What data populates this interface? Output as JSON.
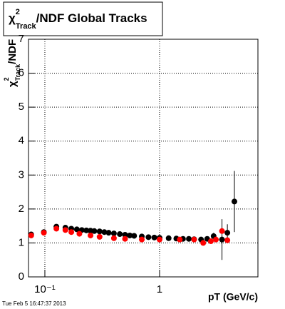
{
  "chart_data": {
    "type": "scatter",
    "title": {
      "symbol": "χ",
      "sup": "2",
      "sub": "Track",
      "rest": "/NDF  Global Tracks"
    },
    "y_label": {
      "symbol": "χ",
      "sup": "2",
      "sub": "Track",
      "rest": "/NDF"
    },
    "x_label": "pT (GeV/c)",
    "timestamp": "Tue Feb  5 16:47:37 2013",
    "xlim": [
      0.072,
      7.2
    ],
    "log_x": true,
    "xticks": [
      {
        "value": 0.1,
        "label": "10⁻¹"
      },
      1
    ],
    "ylim": [
      0,
      7
    ],
    "yticks": [
      0,
      1,
      2,
      3,
      4,
      5,
      6,
      7
    ],
    "grid": true,
    "series": [
      {
        "name": "black",
        "color": "#000000",
        "x": [
          0.076,
          0.098,
          0.126,
          0.151,
          0.17,
          0.19,
          0.21,
          0.23,
          0.25,
          0.27,
          0.3,
          0.33,
          0.36,
          0.4,
          0.45,
          0.5,
          0.55,
          0.6,
          0.7,
          0.8,
          0.9,
          1.0,
          1.2,
          1.4,
          1.6,
          1.8,
          2.0,
          2.3,
          2.6,
          2.96,
          3.5,
          3.9,
          4.49
        ],
        "values": [
          1.25,
          1.32,
          1.48,
          1.45,
          1.42,
          1.4,
          1.38,
          1.37,
          1.36,
          1.35,
          1.34,
          1.32,
          1.3,
          1.28,
          1.26,
          1.24,
          1.22,
          1.21,
          1.19,
          1.17,
          1.16,
          1.15,
          1.14,
          1.13,
          1.12,
          1.12,
          1.11,
          1.1,
          1.12,
          1.2,
          1.1,
          1.3,
          2.22
        ],
        "errors": [
          0.03,
          0.03,
          0.03,
          0.03,
          0.02,
          0.02,
          0.02,
          0.02,
          0.02,
          0.02,
          0.02,
          0.02,
          0.02,
          0.02,
          0.02,
          0.02,
          0.02,
          0.02,
          0.02,
          0.02,
          0.02,
          0.02,
          0.02,
          0.03,
          0.03,
          0.03,
          0.04,
          0.05,
          0.06,
          0.1,
          0.6,
          0.25,
          0.9
        ]
      },
      {
        "name": "red",
        "color": "#ff0000",
        "x": [
          0.076,
          0.098,
          0.126,
          0.151,
          0.17,
          0.2,
          0.25,
          0.3,
          0.4,
          0.5,
          0.7,
          1.0,
          1.5,
          2.0,
          2.4,
          2.8,
          3.1,
          3.5,
          3.9
        ],
        "values": [
          1.22,
          1.3,
          1.42,
          1.38,
          1.32,
          1.27,
          1.22,
          1.18,
          1.14,
          1.12,
          1.1,
          1.1,
          1.1,
          1.1,
          1.0,
          1.05,
          1.1,
          1.35,
          1.08
        ]
      }
    ]
  }
}
